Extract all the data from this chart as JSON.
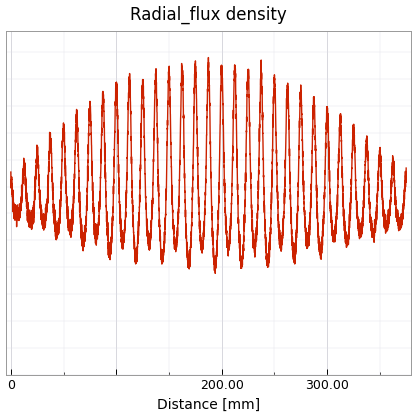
{
  "title": "Radial_flux density",
  "xlabel": "Distance [mm]",
  "ylabel": "",
  "line_color": "#cc2200",
  "line_width": 1.0,
  "background_color": "#ffffff",
  "grid_color": "#c8c8d0",
  "xlim": [
    -5,
    380
  ],
  "ylim": [
    -1.5,
    1.7
  ],
  "title_fontsize": 12,
  "axis_fontsize": 10,
  "tick_fontsize": 9
}
